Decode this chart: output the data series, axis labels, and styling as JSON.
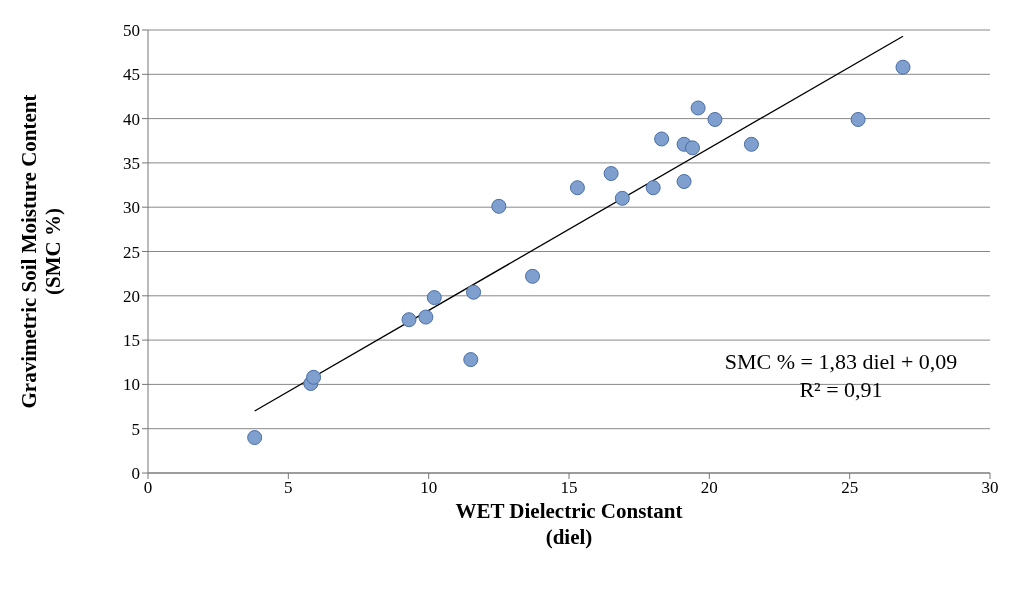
{
  "chart_data": {
    "type": "scatter",
    "xlabel": "WET Dielectric Constant\n(diel)",
    "ylabel": "Gravimetric Soil Moisture Content\n(SMC %)",
    "xlim": [
      0,
      30
    ],
    "xticks": [
      0,
      5,
      10,
      15,
      20,
      25,
      30
    ],
    "ylim": [
      0,
      50
    ],
    "yticks": [
      0,
      5,
      10,
      15,
      20,
      25,
      30,
      35,
      40,
      45,
      50
    ],
    "grid": "y",
    "legend": false,
    "marker": "circle",
    "series": [
      {
        "color": "#7f9fcf",
        "x": [
          3.8,
          5.8,
          5.9,
          9.3,
          9.9,
          10.2,
          11.5,
          11.6,
          12.5,
          13.7,
          15.3,
          16.5,
          16.9,
          18.0,
          18.3,
          19.1,
          19.1,
          19.4,
          19.6,
          20.2,
          21.5,
          25.3,
          26.9
        ],
        "values": [
          4.0,
          10.1,
          10.8,
          17.3,
          17.6,
          19.8,
          12.8,
          20.4,
          30.1,
          22.2,
          32.2,
          33.8,
          31.0,
          32.2,
          37.7,
          32.9,
          37.1,
          36.7,
          41.2,
          39.9,
          37.1,
          39.9,
          45.8
        ]
      },
      {
        "type": "line",
        "color": "#000000",
        "marker": "none",
        "x": [
          3.8,
          26.9
        ],
        "values": [
          7.0,
          49.3
        ]
      }
    ],
    "annotations": [
      "SMC % = 1,83 diel + 0,09",
      "R² = 0,91"
    ]
  }
}
